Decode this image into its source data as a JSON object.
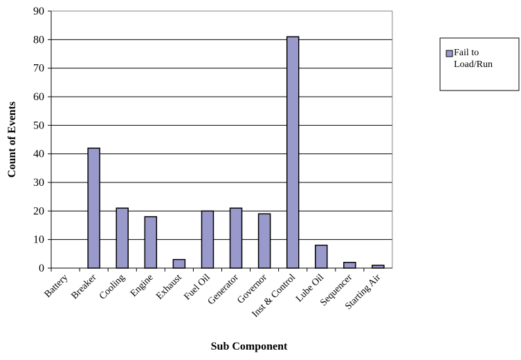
{
  "chart_data": {
    "type": "bar",
    "x_label": "Sub Component",
    "y_label": "Count of Events",
    "categories": [
      "Battery",
      "Breaker",
      "Cooling",
      "Engine",
      "Exhaust",
      "Fuel Oil",
      "Generator",
      "Governor",
      "Inst & Control",
      "Lube Oil",
      "Sequencer",
      "Starting Air"
    ],
    "series": [
      {
        "name": "Fail to Load/Run",
        "color": "#9999cc",
        "values": [
          0,
          42,
          21,
          18,
          3,
          20,
          21,
          19,
          81,
          8,
          2,
          1
        ]
      }
    ],
    "ylim": [
      0,
      90
    ],
    "yticks": [
      0,
      10,
      20,
      30,
      40,
      50,
      60,
      70,
      80,
      90
    ],
    "grid": true,
    "legend": "right"
  }
}
